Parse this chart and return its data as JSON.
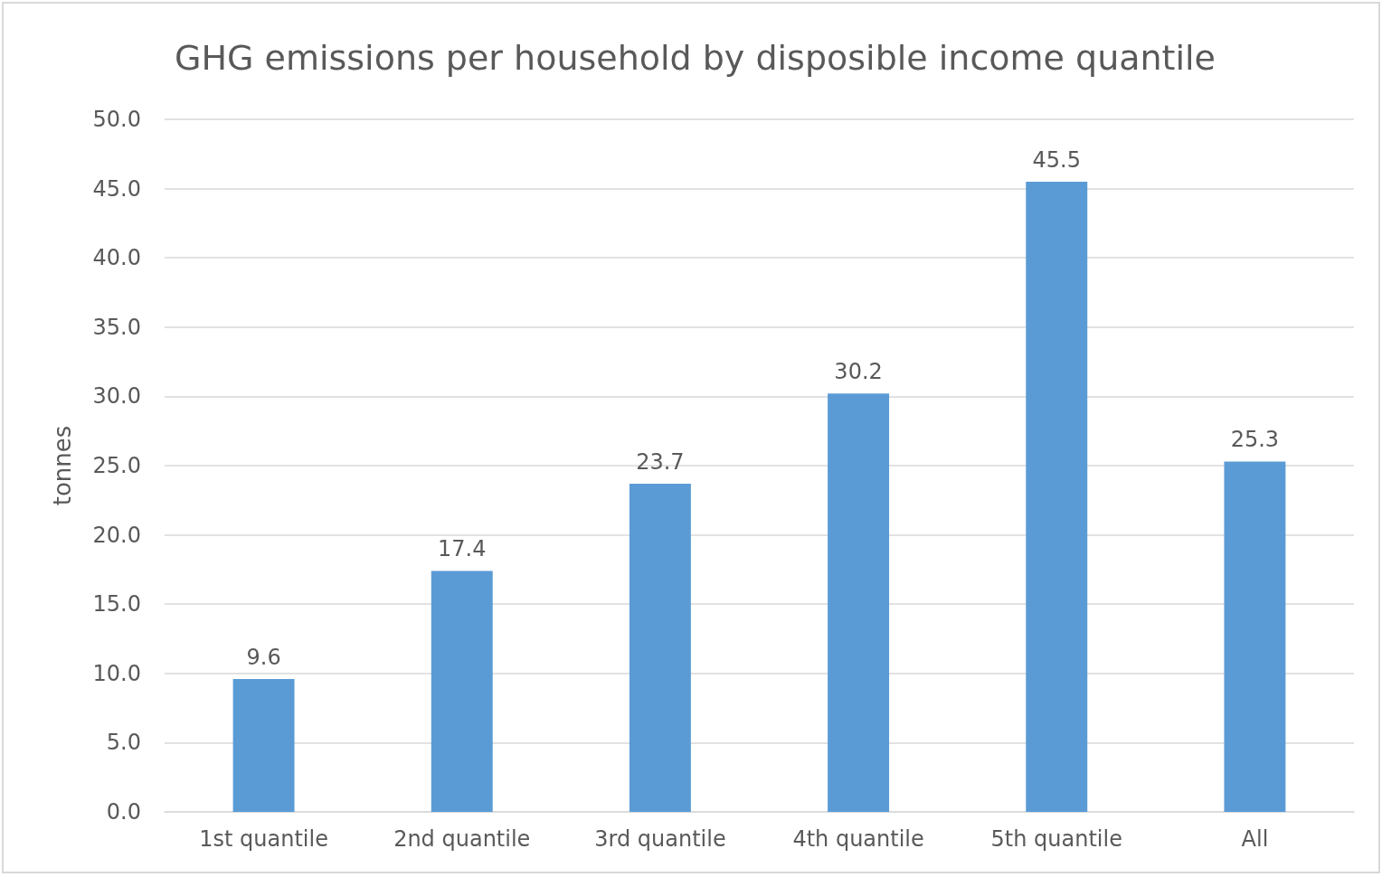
{
  "chart_data": {
    "type": "bar",
    "title": "GHG emissions per household by disposible income quantile",
    "ylabel": "tonnes",
    "categories": [
      "1st quantile",
      "2nd quantile",
      "3rd quantile",
      "4th quantile",
      "5th quantile",
      "All"
    ],
    "values": [
      9.6,
      17.4,
      23.7,
      30.2,
      45.5,
      25.3
    ],
    "color": "#5b9bd5",
    "ylim": [
      0,
      50
    ],
    "yticks": [
      {
        "value": 0,
        "label": "0.0"
      },
      {
        "value": 5,
        "label": "5.0"
      },
      {
        "value": 10,
        "label": "10.0"
      },
      {
        "value": 15,
        "label": "15.0"
      },
      {
        "value": 20,
        "label": "20.0"
      },
      {
        "value": 25,
        "label": "25.0"
      },
      {
        "value": 30,
        "label": "30.0"
      },
      {
        "value": 35,
        "label": "35.0"
      },
      {
        "value": 40,
        "label": "40.0"
      },
      {
        "value": 45,
        "label": "45.0"
      },
      {
        "value": 50,
        "label": "50.0"
      }
    ],
    "grid": true,
    "data_labels": true
  }
}
